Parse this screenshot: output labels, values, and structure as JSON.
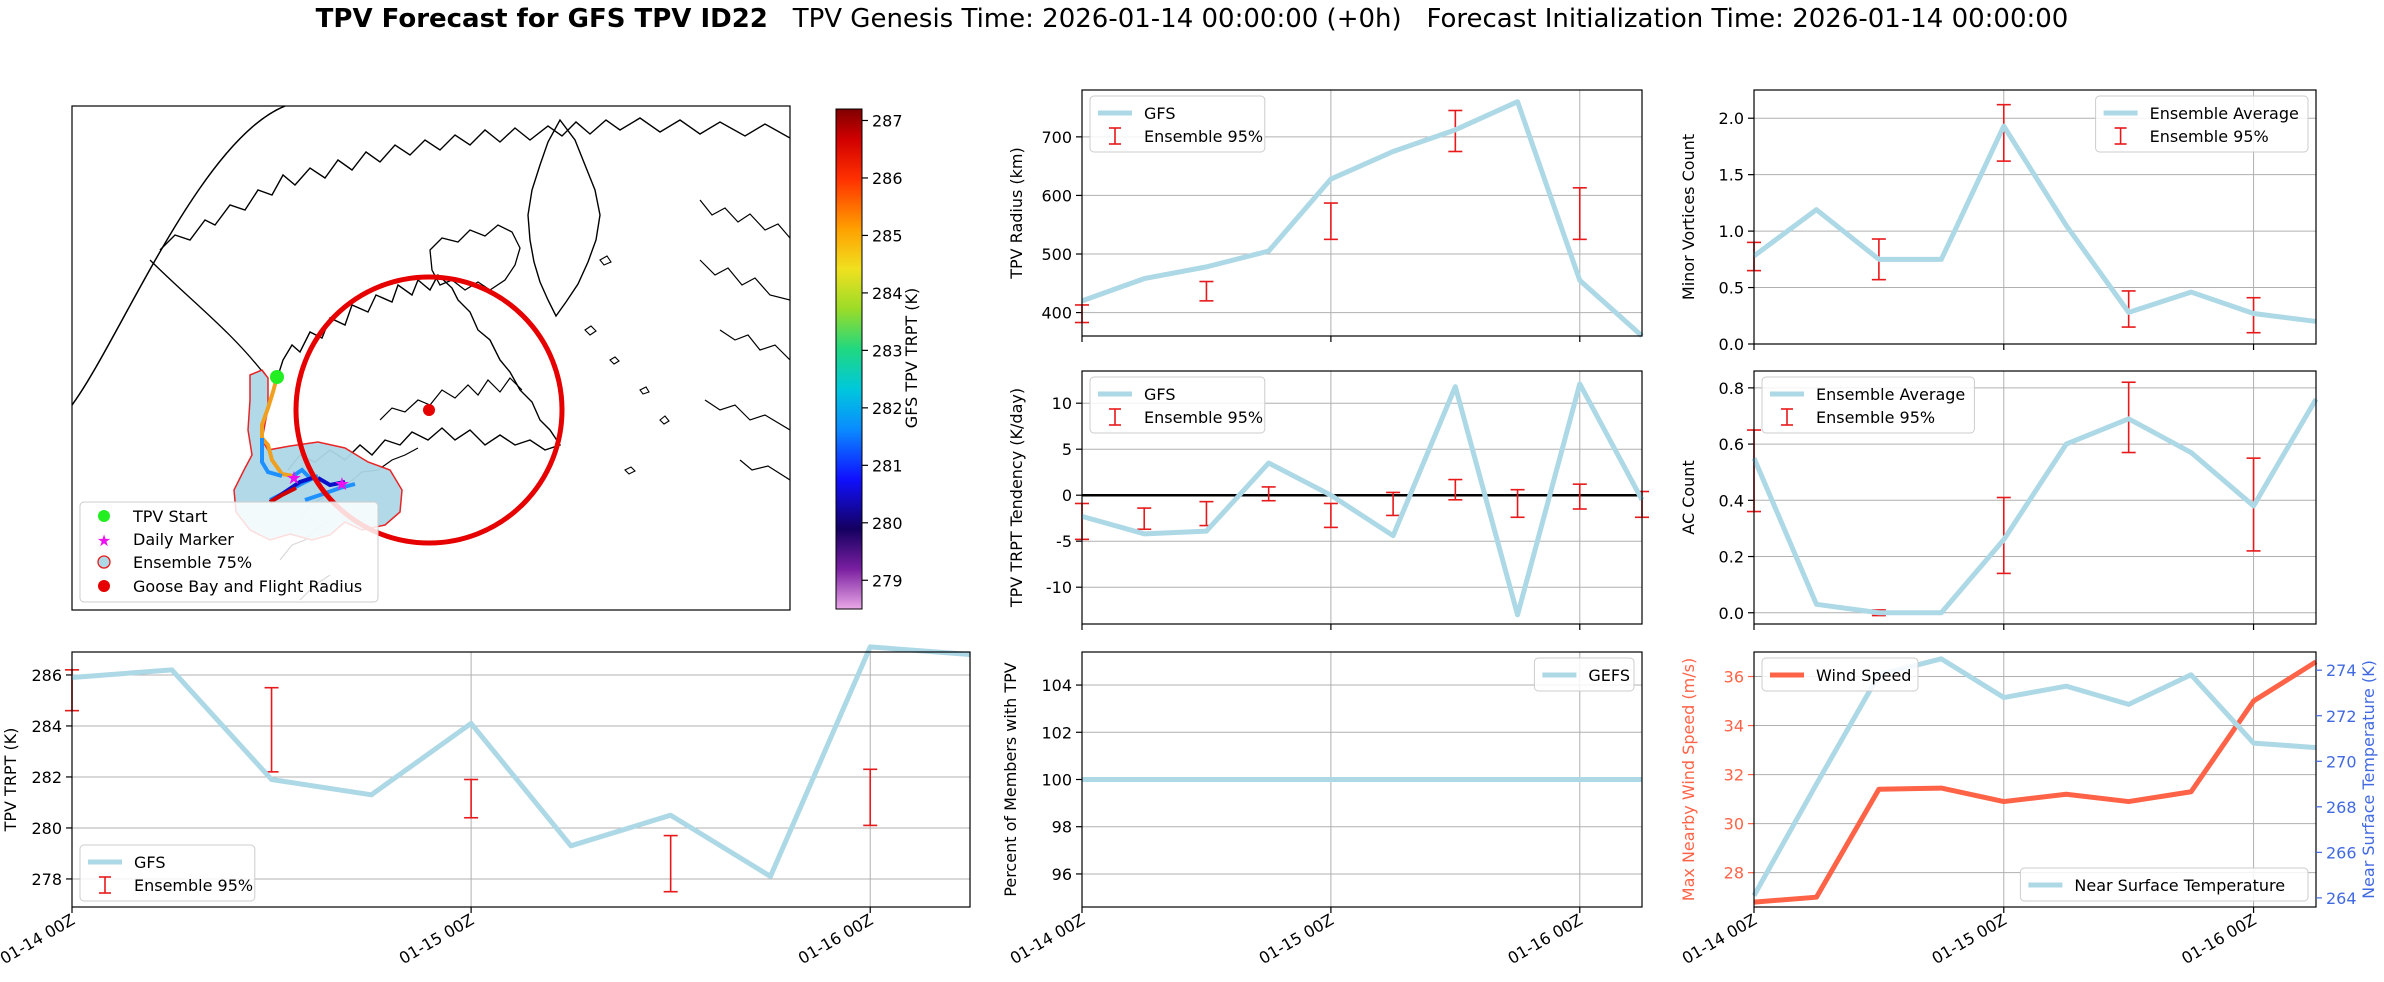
{
  "header": {
    "title_bold": "TPV Forecast for GFS TPV ID22",
    "genesis": "TPV Genesis Time: 2026-01-14 00:00:00 (+0h)",
    "init": "Forecast Initialization Time: 2026-01-14 00:00:00"
  },
  "colors": {
    "series": "#add8e6",
    "error": "#e8191b",
    "wind": "#ff6347",
    "temp_axis": "#4169e1",
    "goose": "#e60000"
  },
  "map": {
    "legend": [
      "TPV Start",
      "Daily Marker",
      "Ensemble 75%",
      "Goose Bay and Flight Radius"
    ],
    "colorbar_label": "GFS TPV TRPT (K)",
    "colorbar_ticks": [
      279,
      280,
      281,
      282,
      283,
      284,
      285,
      286,
      287
    ],
    "colorbar_range": [
      278.5,
      287.2
    ]
  },
  "chart_data": [
    {
      "id": "radius",
      "type": "line",
      "ylabel": "TPV Radius (km)",
      "ylim": [
        360,
        780
      ],
      "yticks": [
        400,
        500,
        600,
        700
      ],
      "x": [
        0,
        1,
        2,
        3,
        4,
        5,
        6,
        7,
        8,
        9
      ],
      "series": [
        {
          "name": "GFS",
          "values": [
            420,
            458,
            478,
            505,
            628,
            675,
            712,
            760,
            455,
            360
          ]
        }
      ],
      "errors": [
        {
          "x": 0,
          "lo": 383,
          "hi": 413
        },
        {
          "x": 2,
          "lo": 420,
          "hi": 453
        },
        {
          "x": 4,
          "lo": 525,
          "hi": 587
        },
        {
          "x": 6,
          "lo": 675,
          "hi": 745
        },
        {
          "x": 8,
          "lo": 525,
          "hi": 613
        }
      ],
      "legend": [
        "GFS",
        "Ensemble 95%"
      ],
      "legend_pos": "top-left",
      "xticks": [],
      "hline": null
    },
    {
      "id": "tendency",
      "type": "line",
      "ylabel": "TPV TRPT Tendency (K/day)",
      "ylim": [
        -14,
        13.5
      ],
      "yticks": [
        -10,
        -5,
        0,
        5,
        10
      ],
      "x": [
        0,
        1,
        2,
        3,
        4,
        5,
        6,
        7,
        8,
        9
      ],
      "series": [
        {
          "name": "GFS",
          "values": [
            -2.3,
            -4.2,
            -3.9,
            3.5,
            0,
            -4.4,
            11.8,
            -13,
            12.1,
            -0.5
          ]
        }
      ],
      "errors": [
        {
          "x": 0,
          "lo": -4.8,
          "hi": -0.9
        },
        {
          "x": 1,
          "lo": -3.7,
          "hi": -1.4
        },
        {
          "x": 2,
          "lo": -3.3,
          "hi": -0.7
        },
        {
          "x": 3,
          "lo": -0.6,
          "hi": 0.9
        },
        {
          "x": 4,
          "lo": -3.5,
          "hi": -0.9
        },
        {
          "x": 5,
          "lo": -2.2,
          "hi": 0.3
        },
        {
          "x": 6,
          "lo": -0.5,
          "hi": 1.7
        },
        {
          "x": 7,
          "lo": -2.4,
          "hi": 0.6
        },
        {
          "x": 8,
          "lo": -1.5,
          "hi": 1.2
        },
        {
          "x": 9,
          "lo": -2.4,
          "hi": 0.4
        }
      ],
      "legend": [
        "GFS",
        "Ensemble 95%"
      ],
      "legend_pos": "top-left",
      "xticks": [],
      "hline": 0
    },
    {
      "id": "minor",
      "type": "line",
      "ylabel": "Minor Vortices Count",
      "ylim": [
        0,
        2.25
      ],
      "yticks": [
        0.0,
        0.5,
        1.0,
        1.5,
        2.0
      ],
      "x": [
        0,
        1,
        2,
        3,
        4,
        5,
        6,
        7,
        8,
        9
      ],
      "series": [
        {
          "name": "Ensemble Average",
          "values": [
            0.78,
            1.19,
            0.75,
            0.75,
            1.93,
            1.05,
            0.28,
            0.46,
            0.27,
            0.2
          ]
        }
      ],
      "errors": [
        {
          "x": 0,
          "lo": 0.65,
          "hi": 0.9
        },
        {
          "x": 2,
          "lo": 0.57,
          "hi": 0.93
        },
        {
          "x": 4,
          "lo": 1.62,
          "hi": 2.12
        },
        {
          "x": 6,
          "lo": 0.15,
          "hi": 0.47
        },
        {
          "x": 8,
          "lo": 0.1,
          "hi": 0.41
        }
      ],
      "legend": [
        "Ensemble Average",
        "Ensemble 95%"
      ],
      "legend_pos": "top-right",
      "xticks": [],
      "hline": null
    },
    {
      "id": "ac",
      "type": "line",
      "ylabel": "AC Count",
      "ylim": [
        -0.04,
        0.86
      ],
      "yticks": [
        0.0,
        0.2,
        0.4,
        0.6,
        0.8
      ],
      "x": [
        0,
        1,
        2,
        3,
        4,
        5,
        6,
        7,
        8,
        9
      ],
      "series": [
        {
          "name": "Ensemble Average",
          "values": [
            0.55,
            0.03,
            0.0,
            0.0,
            0.26,
            0.6,
            0.69,
            0.57,
            0.38,
            0.76
          ]
        }
      ],
      "errors": [
        {
          "x": 0,
          "lo": 0.36,
          "hi": 0.65
        },
        {
          "x": 2,
          "lo": -0.01,
          "hi": 0.01
        },
        {
          "x": 4,
          "lo": 0.14,
          "hi": 0.41
        },
        {
          "x": 6,
          "lo": 0.57,
          "hi": 0.82
        },
        {
          "x": 8,
          "lo": 0.22,
          "hi": 0.55
        }
      ],
      "legend": [
        "Ensemble Average",
        "Ensemble 95%"
      ],
      "legend_pos": "top-left",
      "xticks": [],
      "hline": null
    },
    {
      "id": "trpt",
      "type": "line",
      "ylabel": "TPV TRPT (K)",
      "ylim": [
        276.9,
        286.9
      ],
      "yticks": [
        278,
        280,
        282,
        284,
        286
      ],
      "x": [
        0,
        1,
        2,
        3,
        4,
        5,
        6,
        7,
        8,
        9
      ],
      "series": [
        {
          "name": "GFS",
          "values": [
            285.9,
            286.2,
            281.9,
            281.3,
            284.1,
            279.3,
            280.5,
            278.1,
            287.1,
            286.8
          ]
        }
      ],
      "errors": [
        {
          "x": 0,
          "lo": 284.6,
          "hi": 286.2
        },
        {
          "x": 2,
          "lo": 282.2,
          "hi": 285.5
        },
        {
          "x": 4,
          "lo": 280.4,
          "hi": 281.9
        },
        {
          "x": 6,
          "lo": 277.5,
          "hi": 279.7
        },
        {
          "x": 8,
          "lo": 280.1,
          "hi": 282.3
        }
      ],
      "legend": [
        "GFS",
        "Ensemble 95%"
      ],
      "legend_pos": "bottom-left",
      "xticks": [
        "01-14 00Z",
        "01-15 00Z",
        "01-16 00Z"
      ],
      "hline": null
    },
    {
      "id": "percent",
      "type": "line",
      "ylabel": "Percent of Members with TPV",
      "ylim": [
        94.6,
        105.4
      ],
      "yticks": [
        96,
        98,
        100,
        102,
        104
      ],
      "x": [
        0,
        1,
        2,
        3,
        4,
        5,
        6,
        7,
        8,
        9
      ],
      "series": [
        {
          "name": "GEFS",
          "values": [
            100,
            100,
            100,
            100,
            100,
            100,
            100,
            100,
            100,
            100
          ]
        }
      ],
      "errors": [],
      "legend": [
        "GEFS"
      ],
      "legend_pos": "top-right",
      "xticks": [
        "01-14 00Z",
        "01-15 00Z",
        "01-16 00Z"
      ],
      "hline": null
    },
    {
      "id": "wind",
      "type": "line",
      "ylabel": "Max Nearby Wind Speed (m/s)",
      "ylim": [
        26.6,
        37.0
      ],
      "yticks": [
        28,
        30,
        32,
        34,
        36
      ],
      "y2label": "Near Surface Temperature (K)",
      "y2lim": [
        263.6,
        274.8
      ],
      "y2ticks": [
        264,
        266,
        268,
        270,
        272,
        274
      ],
      "x": [
        0,
        1,
        2,
        3,
        4,
        5,
        6,
        7,
        8,
        9
      ],
      "series": [
        {
          "name": "Wind Speed",
          "values": [
            26.8,
            27.0,
            31.4,
            31.45,
            30.9,
            31.2,
            30.9,
            31.3,
            35.0,
            36.6
          ],
          "axis": "left"
        },
        {
          "name": "Near Surface Temperature",
          "values": [
            264.1,
            269.0,
            273.8,
            274.5,
            272.8,
            273.3,
            272.5,
            273.8,
            270.8,
            270.6
          ],
          "axis": "right"
        }
      ],
      "errors": [],
      "legend": [
        "Wind Speed",
        "Near Surface Temperature"
      ],
      "legend_pos": "top-left / bottom-right",
      "xticks": [
        "01-14 00Z",
        "01-15 00Z",
        "01-16 00Z"
      ],
      "hline": null
    }
  ]
}
